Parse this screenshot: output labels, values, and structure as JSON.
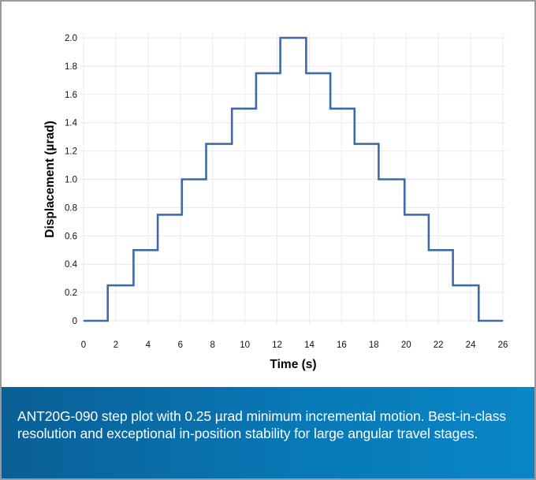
{
  "chart_data": {
    "type": "line",
    "title": "",
    "xlabel": "Time (s)",
    "ylabel": "Displacement (µrad)",
    "xlim": [
      0,
      26
    ],
    "ylim": [
      0,
      2.0
    ],
    "x_ticks": [
      "0",
      "2",
      "4",
      "6",
      "8",
      "10",
      "12",
      "14",
      "16",
      "18",
      "20",
      "22",
      "24",
      "26"
    ],
    "y_ticks": [
      "0",
      "0.2",
      "0.4",
      "0.6",
      "0.8",
      "1.0",
      "1.2",
      "1.4",
      "1.6",
      "1.8",
      "2.0"
    ],
    "grid": true,
    "line_color": "#3e6aa6",
    "series": [
      {
        "x": [
          0,
          1.5,
          1.5,
          3.1,
          3.1,
          4.6,
          4.6,
          6.1,
          6.1,
          7.6,
          7.6,
          9.2,
          9.2,
          10.7,
          10.7,
          12.2,
          12.2,
          13.8,
          13.8,
          15.3,
          15.3,
          16.8,
          16.8,
          18.3,
          18.3,
          19.9,
          19.9,
          21.4,
          21.4,
          22.9,
          22.9,
          24.5,
          24.5,
          26
        ],
        "y": [
          0,
          0,
          0.25,
          0.25,
          0.5,
          0.5,
          0.75,
          0.75,
          1.0,
          1.0,
          1.25,
          1.25,
          1.5,
          1.5,
          1.75,
          1.75,
          2.0,
          2.0,
          1.75,
          1.75,
          1.5,
          1.5,
          1.25,
          1.25,
          1.0,
          1.0,
          0.75,
          0.75,
          0.5,
          0.5,
          0.25,
          0.25,
          0,
          0
        ]
      }
    ]
  },
  "caption": {
    "text": "ANT20G-090 step plot with 0.25 µrad minimum incremental motion. Best-in-class resolution and exceptional in-position stability for large angular travel stages.",
    "background": "#0878b6",
    "text_color": "#ffffff"
  }
}
